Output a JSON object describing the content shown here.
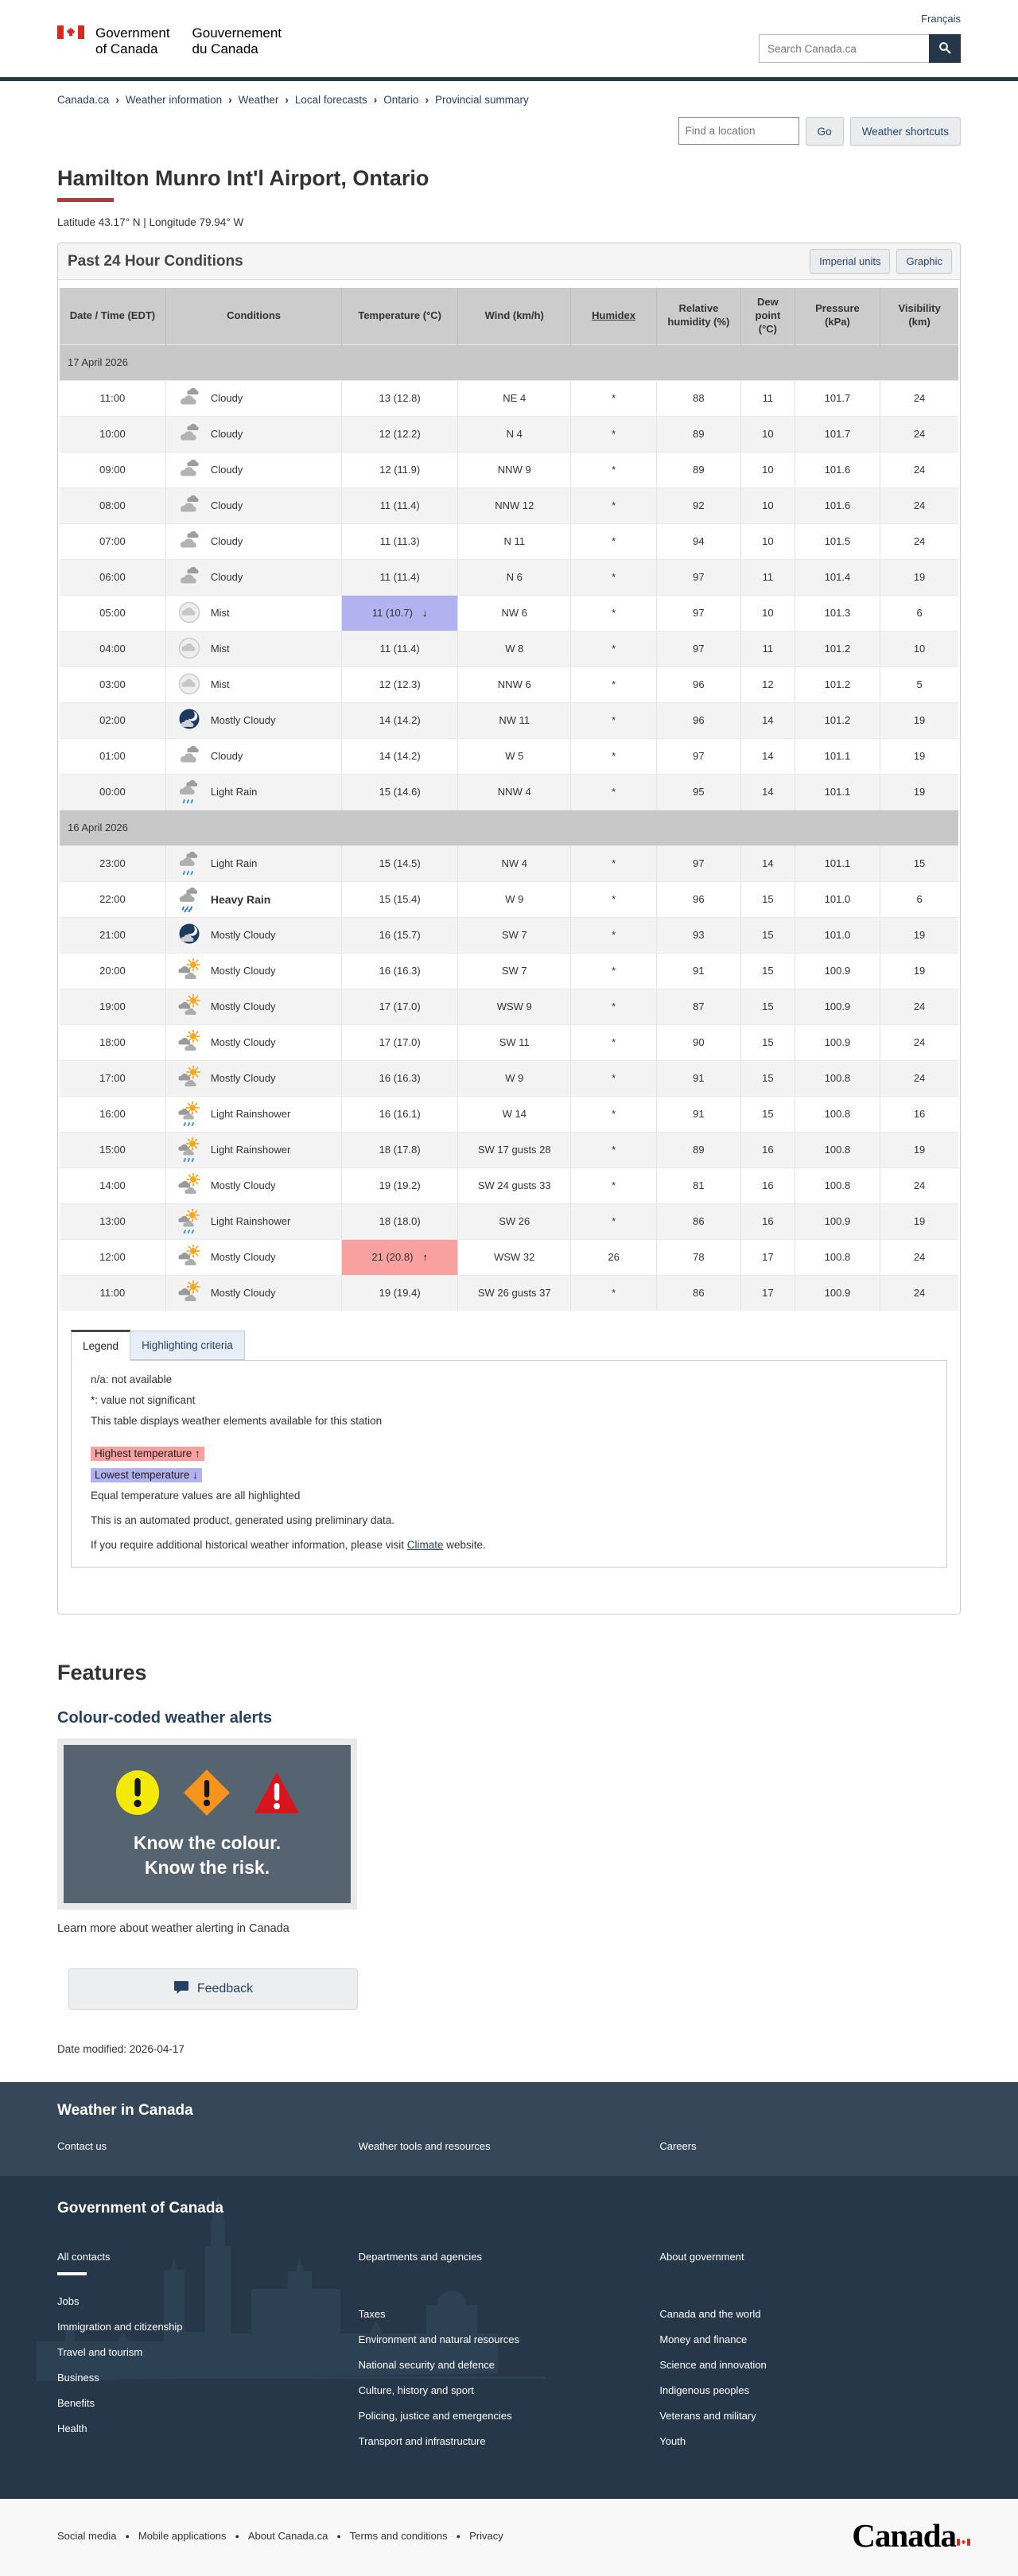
{
  "header": {
    "language_link": "Français",
    "signature_en_1": "Government",
    "signature_en_2": "of Canada",
    "signature_fr_1": "Gouvernement",
    "signature_fr_2": "du Canada",
    "search_placeholder": "Search Canada.ca"
  },
  "breadcrumb": [
    "Canada.ca",
    "Weather information",
    "Weather",
    "Local forecasts",
    "Ontario",
    "Provincial summary"
  ],
  "location_bar": {
    "find_placeholder": "Find a location",
    "go_label": "Go",
    "shortcuts_label": "Weather shortcuts"
  },
  "page": {
    "title": "Hamilton Munro Int'l Airport, Ontario",
    "coordinates": "Latitude 43.17° N | Longitude 79.94° W"
  },
  "panel": {
    "title": "Past 24 Hour Conditions",
    "imperial_label": "Imperial units",
    "graphic_label": "Graphic"
  },
  "table": {
    "columns": [
      "Date / Time (EDT)",
      "Conditions",
      "Temperature (°C)",
      "Wind (km/h)",
      "Humidex",
      "Relative humidity (%)",
      "Dew point (°C)",
      "Pressure (kPa)",
      "Visibility (km)"
    ],
    "groups": [
      {
        "date": "17 April 2026",
        "rows": [
          {
            "time": "11:00",
            "condition": "Cloudy",
            "icon": "cloudy",
            "temp": "13 (12.8)",
            "wind": "NE 4",
            "humidex": "*",
            "humidity": "88",
            "dew": "11",
            "pressure": "101.7",
            "visibility": "24"
          },
          {
            "time": "10:00",
            "condition": "Cloudy",
            "icon": "cloudy",
            "temp": "12 (12.2)",
            "wind": "N 4",
            "humidex": "*",
            "humidity": "89",
            "dew": "10",
            "pressure": "101.7",
            "visibility": "24"
          },
          {
            "time": "09:00",
            "condition": "Cloudy",
            "icon": "cloudy",
            "temp": "12 (11.9)",
            "wind": "NNW 9",
            "humidex": "*",
            "humidity": "89",
            "dew": "10",
            "pressure": "101.6",
            "visibility": "24"
          },
          {
            "time": "08:00",
            "condition": "Cloudy",
            "icon": "cloudy",
            "temp": "11 (11.4)",
            "wind": "NNW 12",
            "humidex": "*",
            "humidity": "92",
            "dew": "10",
            "pressure": "101.6",
            "visibility": "24"
          },
          {
            "time": "07:00",
            "condition": "Cloudy",
            "icon": "cloudy",
            "temp": "11 (11.3)",
            "wind": "N 11",
            "humidex": "*",
            "humidity": "94",
            "dew": "10",
            "pressure": "101.5",
            "visibility": "24"
          },
          {
            "time": "06:00",
            "condition": "Cloudy",
            "icon": "cloudy",
            "temp": "11 (11.4)",
            "wind": "N 6",
            "humidex": "*",
            "humidity": "97",
            "dew": "11",
            "pressure": "101.4",
            "visibility": "19"
          },
          {
            "time": "05:00",
            "condition": "Mist",
            "icon": "mist",
            "temp": "11 (10.7)",
            "temp_flag": "low",
            "arrow": "↓",
            "wind": "NW 6",
            "humidex": "*",
            "humidity": "97",
            "dew": "10",
            "pressure": "101.3",
            "visibility": "6"
          },
          {
            "time": "04:00",
            "condition": "Mist",
            "icon": "mist",
            "temp": "11 (11.4)",
            "wind": "W 8",
            "humidex": "*",
            "humidity": "97",
            "dew": "11",
            "pressure": "101.2",
            "visibility": "10"
          },
          {
            "time": "03:00",
            "condition": "Mist",
            "icon": "mist",
            "temp": "12 (12.3)",
            "wind": "NNW 6",
            "humidex": "*",
            "humidity": "96",
            "dew": "12",
            "pressure": "101.2",
            "visibility": "5"
          },
          {
            "time": "02:00",
            "condition": "Mostly Cloudy",
            "icon": "night-cloudy",
            "temp": "14 (14.2)",
            "wind": "NW 11",
            "humidex": "*",
            "humidity": "96",
            "dew": "14",
            "pressure": "101.2",
            "visibility": "19"
          },
          {
            "time": "01:00",
            "condition": "Cloudy",
            "icon": "cloudy",
            "temp": "14 (14.2)",
            "wind": "W 5",
            "humidex": "*",
            "humidity": "97",
            "dew": "14",
            "pressure": "101.1",
            "visibility": "19"
          },
          {
            "time": "00:00",
            "condition": "Light Rain",
            "icon": "light-rain",
            "temp": "15 (14.6)",
            "wind": "NNW 4",
            "humidex": "*",
            "humidity": "95",
            "dew": "14",
            "pressure": "101.1",
            "visibility": "19"
          }
        ]
      },
      {
        "date": "16 April 2026",
        "rows": [
          {
            "time": "23:00",
            "condition": "Light Rain",
            "icon": "light-rain",
            "temp": "15 (14.5)",
            "wind": "NW 4",
            "humidex": "*",
            "humidity": "97",
            "dew": "14",
            "pressure": "101.1",
            "visibility": "15"
          },
          {
            "time": "22:00",
            "condition": "Heavy Rain",
            "icon": "heavy-rain",
            "bold": true,
            "temp": "15 (15.4)",
            "wind": "W 9",
            "humidex": "*",
            "humidity": "96",
            "dew": "15",
            "pressure": "101.0",
            "visibility": "6"
          },
          {
            "time": "21:00",
            "condition": "Mostly Cloudy",
            "icon": "night-cloudy",
            "temp": "16 (15.7)",
            "wind": "SW 7",
            "humidex": "*",
            "humidity": "93",
            "dew": "15",
            "pressure": "101.0",
            "visibility": "19"
          },
          {
            "time": "20:00",
            "condition": "Mostly Cloudy",
            "icon": "sun-cloud",
            "temp": "16 (16.3)",
            "wind": "SW 7",
            "humidex": "*",
            "humidity": "91",
            "dew": "15",
            "pressure": "100.9",
            "visibility": "19"
          },
          {
            "time": "19:00",
            "condition": "Mostly Cloudy",
            "icon": "sun-cloud",
            "temp": "17 (17.0)",
            "wind": "WSW 9",
            "humidex": "*",
            "humidity": "87",
            "dew": "15",
            "pressure": "100.9",
            "visibility": "24"
          },
          {
            "time": "18:00",
            "condition": "Mostly Cloudy",
            "icon": "sun-cloud",
            "temp": "17 (17.0)",
            "wind": "SW 11",
            "humidex": "*",
            "humidity": "90",
            "dew": "15",
            "pressure": "100.9",
            "visibility": "24"
          },
          {
            "time": "17:00",
            "condition": "Mostly Cloudy",
            "icon": "sun-cloud",
            "temp": "16 (16.3)",
            "wind": "W 9",
            "humidex": "*",
            "humidity": "91",
            "dew": "15",
            "pressure": "100.8",
            "visibility": "24"
          },
          {
            "time": "16:00",
            "condition": "Light Rainshower",
            "icon": "sun-rain",
            "temp": "16 (16.1)",
            "wind": "W 14",
            "humidex": "*",
            "humidity": "91",
            "dew": "15",
            "pressure": "100.8",
            "visibility": "16"
          },
          {
            "time": "15:00",
            "condition": "Light Rainshower",
            "icon": "sun-rain",
            "temp": "18 (17.8)",
            "wind": "SW 17 gusts 28",
            "humidex": "*",
            "humidity": "89",
            "dew": "16",
            "pressure": "100.8",
            "visibility": "19"
          },
          {
            "time": "14:00",
            "condition": "Mostly Cloudy",
            "icon": "sun-cloud",
            "temp": "19 (19.2)",
            "wind": "SW 24 gusts 33",
            "humidex": "*",
            "humidity": "81",
            "dew": "16",
            "pressure": "100.8",
            "visibility": "24"
          },
          {
            "time": "13:00",
            "condition": "Light Rainshower",
            "icon": "sun-rain",
            "temp": "18 (18.0)",
            "wind": "SW 26",
            "humidex": "*",
            "humidity": "86",
            "dew": "16",
            "pressure": "100.9",
            "visibility": "19"
          },
          {
            "time": "12:00",
            "condition": "Mostly Cloudy",
            "icon": "sun-cloud",
            "temp": "21 (20.8)",
            "temp_flag": "high",
            "arrow": "↑",
            "wind": "WSW 32",
            "humidex": "26",
            "humidity": "78",
            "dew": "17",
            "pressure": "100.8",
            "visibility": "24"
          },
          {
            "time": "11:00",
            "condition": "Mostly Cloudy",
            "icon": "sun-cloud",
            "temp": "19 (19.4)",
            "wind": "SW 26 gusts 37",
            "humidex": "*",
            "humidity": "86",
            "dew": "17",
            "pressure": "100.9",
            "visibility": "24"
          }
        ]
      }
    ]
  },
  "legend": {
    "tab_legend": "Legend",
    "tab_criteria": "Highlighting criteria",
    "lines": [
      "n/a: not available",
      "*: value not significant",
      "This table displays weather elements available for this station"
    ],
    "highest": "Highest temperature ↑",
    "lowest": "Lowest temperature ↓",
    "equal_note": "Equal temperature values are all highlighted",
    "auto_note": "This is an automated product, generated using preliminary data.",
    "climate_pre": "If you require additional historical weather information, please visit ",
    "climate_link": "Climate",
    "climate_post": " website."
  },
  "features": {
    "heading": "Features",
    "link": "Colour-coded weather alerts",
    "caption_1": "Know the colour.",
    "caption_2": "Know the risk.",
    "learn_more": "Learn more about weather alerting in Canada"
  },
  "feedback_label": "Feedback",
  "date_modified": "Date modified: 2026-04-17",
  "footer": {
    "band1_title": "Weather in Canada",
    "band1_links": [
      "Contact us",
      "Weather tools and resources",
      "Careers"
    ],
    "band2_title": "Government of Canada",
    "col1_lead": "All contacts",
    "col1_items": [
      "Jobs",
      "Immigration and citizenship",
      "Travel and tourism",
      "Business",
      "Benefits",
      "Health"
    ],
    "col2_lead": "Departments and agencies",
    "col2_items": [
      "Taxes",
      "Environment and natural resources",
      "National security and defence",
      "Culture, history and sport",
      "Policing, justice and emergencies",
      "Transport and infrastructure"
    ],
    "col3_lead": "About government",
    "col3_items": [
      "Canada and the world",
      "Money and finance",
      "Science and innovation",
      "Indigenous peoples",
      "Veterans and military",
      "Youth"
    ],
    "bottom_links": [
      "Social media",
      "Mobile applications",
      "About Canada.ca",
      "Terms and conditions",
      "Privacy"
    ],
    "wordmark": "Canada"
  },
  "colors": {
    "accent_red": "#b1383d",
    "link_blue": "#284162",
    "header_band": "#2b3947",
    "highlight_high": "#f9a0a0",
    "highlight_low": "#b2b2f0",
    "footer_band": "#36475a",
    "footer_dark": "#26374a",
    "bottom_bar": "#f8f8f8",
    "alert_yellow": "#f3ea0b",
    "alert_orange": "#f7941d",
    "alert_red": "#d8141c"
  }
}
